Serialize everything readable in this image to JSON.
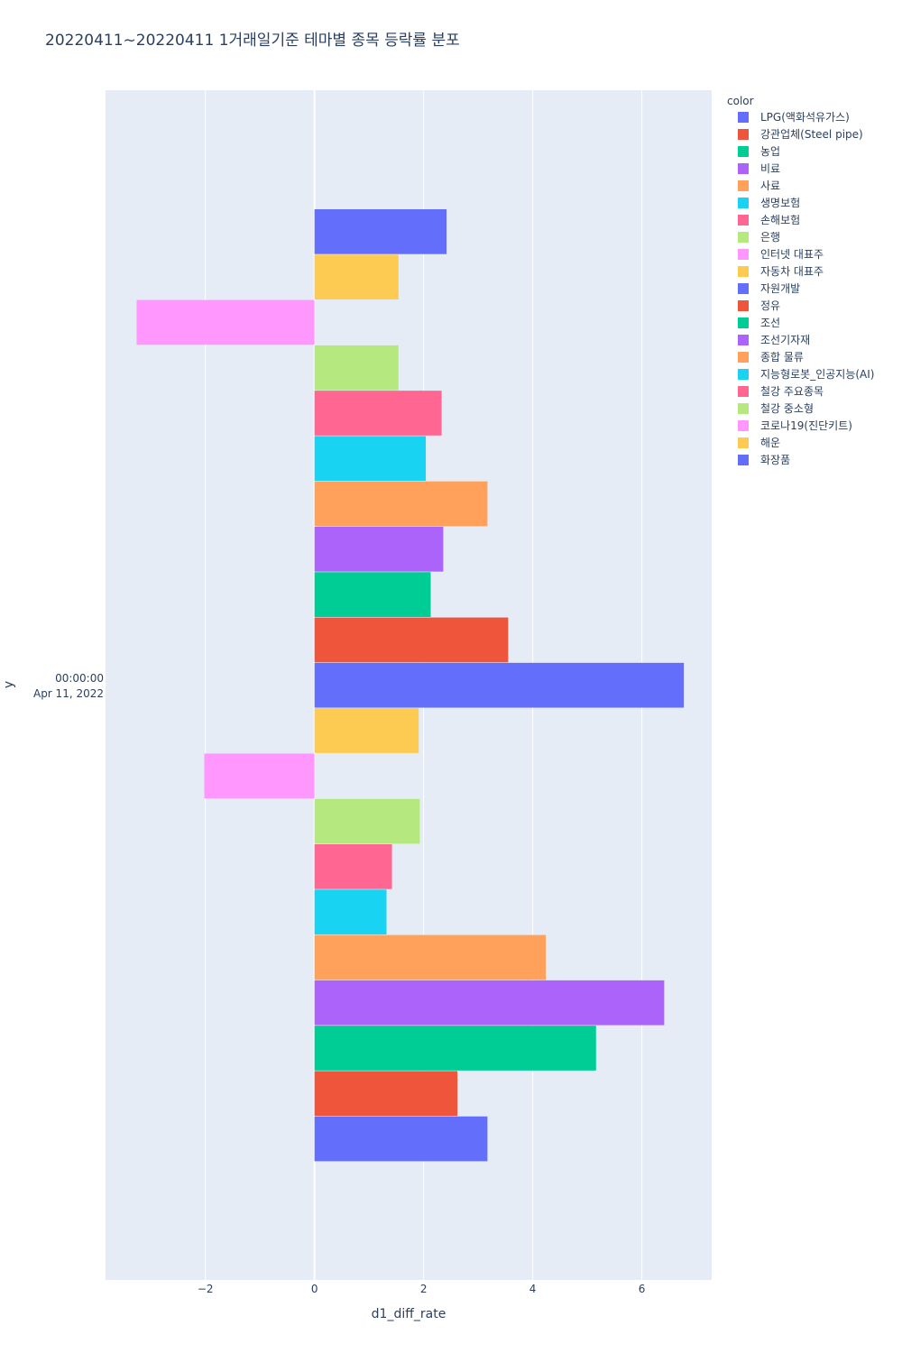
{
  "chart_data": {
    "type": "bar",
    "orientation": "horizontal",
    "title": "20220411~20220411 1거래일기준 테마별 종목 등락률 분포",
    "xlabel": "d1_diff_rate",
    "ylabel": "y",
    "y_category_lines": [
      "00:00:00",
      "Apr 11, 2022"
    ],
    "xlim": [
      -3.83,
      7.28
    ],
    "x_ticks": [
      -2,
      0,
      2,
      4,
      6
    ],
    "x_tick_labels": [
      "−2",
      "0",
      "2",
      "4",
      "6"
    ],
    "grid": true,
    "legend_title": "color",
    "legend_position": "right",
    "series": [
      {
        "name": "LPG(액화석유가스)",
        "value": 3.17,
        "color": "#636efa"
      },
      {
        "name": "강관업체(Steel pipe)",
        "value": 2.62,
        "color": "#EF553B"
      },
      {
        "name": "농업",
        "value": 5.16,
        "color": "#00cc96"
      },
      {
        "name": "비료",
        "value": 6.41,
        "color": "#ab63fa"
      },
      {
        "name": "사료",
        "value": 4.24,
        "color": "#FFA15A"
      },
      {
        "name": "생명보험",
        "value": 1.32,
        "color": "#19d3f3"
      },
      {
        "name": "손해보험",
        "value": 1.42,
        "color": "#FF6692"
      },
      {
        "name": "은행",
        "value": 1.93,
        "color": "#B6E880"
      },
      {
        "name": "인터넷 대표주",
        "value": -2.02,
        "color": "#FF97FF"
      },
      {
        "name": "자동차 대표주",
        "value": 1.91,
        "color": "#FECB52"
      },
      {
        "name": "자원개발",
        "value": 6.77,
        "color": "#636efa"
      },
      {
        "name": "정유",
        "value": 3.55,
        "color": "#EF553B"
      },
      {
        "name": "조선",
        "value": 2.13,
        "color": "#00cc96"
      },
      {
        "name": "조선기자재",
        "value": 2.36,
        "color": "#ab63fa"
      },
      {
        "name": "종합 물류",
        "value": 3.17,
        "color": "#FFA15A"
      },
      {
        "name": "지능형로봇_인공지능(AI)",
        "value": 2.04,
        "color": "#19d3f3"
      },
      {
        "name": "철강 주요종목",
        "value": 2.33,
        "color": "#FF6692"
      },
      {
        "name": "철강 중소형",
        "value": 1.54,
        "color": "#B6E880"
      },
      {
        "name": "코로나19(진단키트)",
        "value": -3.26,
        "color": "#FF97FF"
      },
      {
        "name": "해운",
        "value": 1.54,
        "color": "#FECB52"
      },
      {
        "name": "화장품",
        "value": 2.42,
        "color": "#636efa"
      }
    ],
    "plot_background": "#E5ECF6",
    "grid_color": "#ffffff"
  }
}
